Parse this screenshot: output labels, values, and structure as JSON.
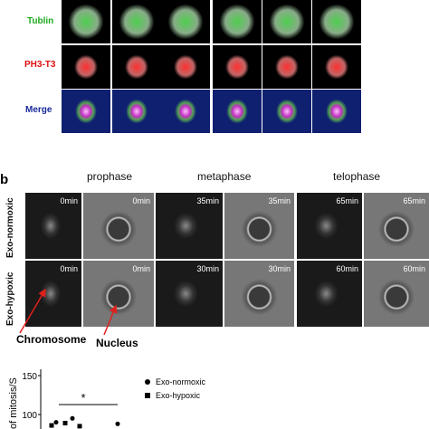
{
  "panel_a": {
    "row_labels": [
      "Tublin",
      "PH3-T3",
      "Merge"
    ]
  },
  "panel_b": {
    "letter": "b",
    "phases": [
      "prophase",
      "metaphase",
      "telophase"
    ],
    "row_labels": [
      "Exo-normoxic",
      "Exo-hypoxic"
    ],
    "times": [
      [
        "0min",
        "0min",
        "35min",
        "35min",
        "65min",
        "65min"
      ],
      [
        "0min",
        "0min",
        "30min",
        "30min",
        "60min",
        "60min"
      ]
    ],
    "annotations": [
      "Chromosome",
      "Nucleus"
    ]
  },
  "chart_data": {
    "type": "scatter",
    "ylabel": "of mitosis/S",
    "yticks": [
      150,
      100
    ],
    "significance": "*",
    "series": [
      {
        "name": "Exo-normoxic",
        "color": "#000000",
        "values": [
          90,
          95,
          88
        ]
      },
      {
        "name": "Exo-hypoxic",
        "color": "#000000",
        "values": [
          86,
          89,
          85
        ]
      }
    ]
  }
}
